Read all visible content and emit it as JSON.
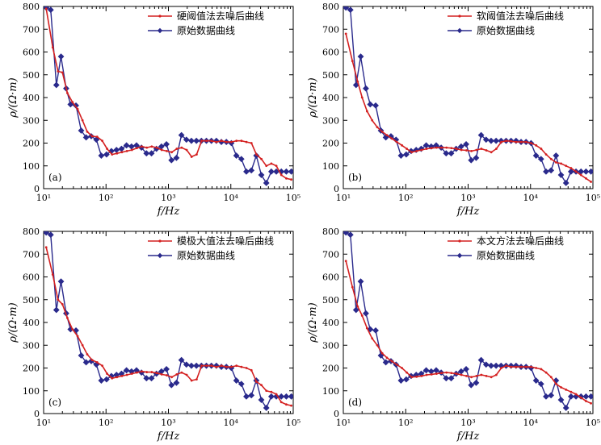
{
  "colors": {
    "denoised": "#d42020",
    "raw": "#2a2a8c"
  },
  "chart_data": [
    {
      "type": "line",
      "panel_label": "(a)",
      "xscale": "log",
      "xlim": [
        10,
        100000
      ],
      "ylim": [
        0,
        800
      ],
      "xticks": [
        10,
        100,
        1000,
        10000,
        100000
      ],
      "xtick_labels": [
        "10¹",
        "10²",
        "10³",
        "10⁴",
        "10⁵"
      ],
      "yticks": [
        0,
        100,
        200,
        300,
        400,
        500,
        600,
        700,
        800
      ],
      "xlabel": "f/Hz",
      "ylabel": "ρ/(Ω·m)",
      "legend_position": "top-right",
      "series": [
        {
          "name": "硬阈值法去噪后曲线",
          "color_key": "denoised",
          "marker": "dot",
          "x": [
            11,
            14,
            17,
            20,
            24,
            29,
            35,
            42,
            50,
            60,
            72,
            87,
            104,
            125,
            150,
            180,
            216,
            260,
            312,
            375,
            450,
            540,
            650,
            780,
            940,
            1130,
            1360,
            1630,
            1960,
            2350,
            2830,
            3400,
            4080,
            4900,
            5900,
            7100,
            8500,
            10200,
            12300,
            14800,
            17800,
            21400,
            25700,
            30900,
            37100,
            44600,
            53600,
            64400,
            77400,
            93000
          ],
          "y": [
            790,
            620,
            515,
            510,
            420,
            380,
            350,
            300,
            250,
            230,
            228,
            210,
            175,
            150,
            155,
            160,
            165,
            170,
            178,
            185,
            180,
            185,
            180,
            170,
            165,
            160,
            175,
            180,
            170,
            140,
            150,
            210,
            210,
            210,
            205,
            210,
            205,
            205,
            210,
            210,
            205,
            200,
            150,
            130,
            100,
            110,
            100,
            60,
            45,
            40
          ]
        },
        {
          "name": "原始数据曲线",
          "color_key": "raw",
          "marker": "diamond",
          "x": [
            11,
            13,
            16,
            19,
            23,
            27,
            33,
            40,
            48,
            58,
            70,
            84,
            102,
            122,
            147,
            177,
            213,
            256,
            308,
            370,
            445,
            535,
            643,
            773,
            930,
            1118,
            1344,
            1616,
            1943,
            2336,
            2809,
            3377,
            4060,
            4882,
            5869,
            7057,
            8485,
            10202,
            12266,
            14748,
            17733,
            21321,
            25635,
            30822,
            37058,
            44557,
            53573,
            64413,
            77446,
            93116
          ],
          "y": [
            795,
            785,
            455,
            580,
            440,
            370,
            365,
            255,
            225,
            230,
            215,
            145,
            150,
            165,
            170,
            175,
            190,
            185,
            190,
            180,
            155,
            155,
            175,
            185,
            195,
            125,
            135,
            235,
            215,
            210,
            210,
            210,
            210,
            210,
            210,
            205,
            205,
            200,
            145,
            130,
            75,
            80,
            145,
            60,
            25,
            75,
            75,
            75,
            75,
            75
          ]
        }
      ]
    },
    {
      "type": "line",
      "panel_label": "(b)",
      "xscale": "log",
      "xlim": [
        10,
        100000
      ],
      "ylim": [
        0,
        800
      ],
      "xticks": [
        10,
        100,
        1000,
        10000,
        100000
      ],
      "xtick_labels": [
        "10¹",
        "10²",
        "10³",
        "10⁴",
        "10⁵"
      ],
      "yticks": [
        0,
        100,
        200,
        300,
        400,
        500,
        600,
        700,
        800
      ],
      "xlabel": "f/Hz",
      "ylabel": "ρ/(Ω·m)",
      "legend_position": "top-right",
      "series": [
        {
          "name": "软阈值法去噪后曲线",
          "color_key": "denoised",
          "marker": "dot",
          "x": [
            11,
            14,
            17,
            20,
            24,
            29,
            35,
            42,
            50,
            60,
            72,
            87,
            104,
            125,
            150,
            180,
            216,
            260,
            312,
            375,
            450,
            540,
            650,
            780,
            940,
            1130,
            1360,
            1630,
            1960,
            2350,
            2830,
            3400,
            4080,
            4900,
            5900,
            7100,
            8500,
            10200,
            12300,
            14800,
            17800,
            21400,
            25700,
            30900,
            37100,
            44600,
            53600,
            64400,
            77400,
            93000
          ],
          "y": [
            680,
            560,
            470,
            400,
            340,
            300,
            270,
            250,
            235,
            220,
            205,
            190,
            175,
            160,
            165,
            170,
            175,
            178,
            180,
            180,
            180,
            178,
            175,
            170,
            168,
            165,
            170,
            175,
            168,
            160,
            175,
            205,
            210,
            208,
            205,
            205,
            205,
            200,
            190,
            175,
            150,
            130,
            115,
            110,
            100,
            90,
            75,
            60,
            45,
            30
          ]
        },
        {
          "name": "原始数据曲线",
          "color_key": "raw",
          "marker": "diamond",
          "x": [
            11,
            13,
            16,
            19,
            23,
            27,
            33,
            40,
            48,
            58,
            70,
            84,
            102,
            122,
            147,
            177,
            213,
            256,
            308,
            370,
            445,
            535,
            643,
            773,
            930,
            1118,
            1344,
            1616,
            1943,
            2336,
            2809,
            3377,
            4060,
            4882,
            5869,
            7057,
            8485,
            10202,
            12266,
            14748,
            17733,
            21321,
            25635,
            30822,
            37058,
            44557,
            53573,
            64413,
            77446,
            93116
          ],
          "y": [
            795,
            785,
            455,
            580,
            440,
            370,
            365,
            255,
            225,
            230,
            215,
            145,
            150,
            165,
            170,
            175,
            190,
            185,
            190,
            180,
            155,
            155,
            175,
            185,
            195,
            125,
            135,
            235,
            215,
            210,
            210,
            210,
            210,
            210,
            210,
            205,
            205,
            200,
            145,
            130,
            75,
            80,
            145,
            60,
            25,
            75,
            75,
            75,
            75,
            75
          ]
        }
      ]
    },
    {
      "type": "line",
      "panel_label": "(c)",
      "xscale": "log",
      "xlim": [
        10,
        100000
      ],
      "ylim": [
        0,
        800
      ],
      "xticks": [
        10,
        100,
        1000,
        10000,
        100000
      ],
      "xtick_labels": [
        "10¹",
        "10²",
        "10³",
        "10⁴",
        "10⁵"
      ],
      "yticks": [
        0,
        100,
        200,
        300,
        400,
        500,
        600,
        700,
        800
      ],
      "xlabel": "f/Hz",
      "ylabel": "ρ/(Ω·m)",
      "legend_position": "top-right",
      "series": [
        {
          "name": "模极大值法去噪后曲线",
          "color_key": "denoised",
          "marker": "dot",
          "x": [
            11,
            14,
            17,
            20,
            24,
            29,
            35,
            42,
            50,
            60,
            72,
            87,
            104,
            125,
            150,
            180,
            216,
            260,
            312,
            375,
            450,
            540,
            650,
            780,
            940,
            1130,
            1360,
            1630,
            1960,
            2350,
            2830,
            3400,
            4080,
            4900,
            5900,
            7100,
            8500,
            10200,
            12300,
            14800,
            17800,
            21400,
            25700,
            30900,
            37100,
            44600,
            53600,
            64400,
            77400,
            93000
          ],
          "y": [
            730,
            610,
            500,
            480,
            420,
            370,
            340,
            300,
            260,
            235,
            225,
            210,
            175,
            155,
            160,
            165,
            170,
            175,
            180,
            185,
            182,
            182,
            178,
            172,
            168,
            160,
            172,
            180,
            170,
            145,
            150,
            210,
            210,
            210,
            205,
            210,
            205,
            205,
            210,
            205,
            200,
            190,
            140,
            125,
            100,
            95,
            85,
            50,
            40,
            35
          ]
        },
        {
          "name": "原始数据曲线",
          "color_key": "raw",
          "marker": "diamond",
          "x": [
            11,
            13,
            16,
            19,
            23,
            27,
            33,
            40,
            48,
            58,
            70,
            84,
            102,
            122,
            147,
            177,
            213,
            256,
            308,
            370,
            445,
            535,
            643,
            773,
            930,
            1118,
            1344,
            1616,
            1943,
            2336,
            2809,
            3377,
            4060,
            4882,
            5869,
            7057,
            8485,
            10202,
            12266,
            14748,
            17733,
            21321,
            25635,
            30822,
            37058,
            44557,
            53573,
            64413,
            77446,
            93116
          ],
          "y": [
            795,
            785,
            455,
            580,
            440,
            370,
            365,
            255,
            225,
            230,
            215,
            145,
            150,
            165,
            170,
            175,
            190,
            185,
            190,
            180,
            155,
            155,
            175,
            185,
            195,
            125,
            135,
            235,
            215,
            210,
            210,
            210,
            210,
            210,
            210,
            205,
            205,
            200,
            145,
            130,
            75,
            80,
            145,
            60,
            25,
            75,
            75,
            75,
            75,
            75
          ]
        }
      ]
    },
    {
      "type": "line",
      "panel_label": "(d)",
      "xscale": "log",
      "xlim": [
        10,
        100000
      ],
      "ylim": [
        0,
        800
      ],
      "xticks": [
        10,
        100,
        1000,
        10000,
        100000
      ],
      "xtick_labels": [
        "10¹",
        "10²",
        "10³",
        "10⁴",
        "10⁵"
      ],
      "yticks": [
        0,
        100,
        200,
        300,
        400,
        500,
        600,
        700,
        800
      ],
      "xlabel": "f/Hz",
      "ylabel": "ρ/(Ω·m)",
      "legend_position": "top-right",
      "series": [
        {
          "name": "本文方法去噪后曲线",
          "color_key": "denoised",
          "marker": "dot",
          "x": [
            11,
            14,
            17,
            20,
            24,
            29,
            35,
            42,
            50,
            60,
            72,
            87,
            104,
            125,
            150,
            180,
            216,
            260,
            312,
            375,
            450,
            540,
            650,
            780,
            940,
            1130,
            1360,
            1630,
            1960,
            2350,
            2830,
            3400,
            4080,
            4900,
            5900,
            7100,
            8500,
            10200,
            12300,
            14800,
            17800,
            21400,
            25700,
            30900,
            37100,
            44600,
            53600,
            64400,
            77400,
            93000
          ],
          "y": [
            670,
            555,
            470,
            430,
            375,
            330,
            300,
            265,
            245,
            230,
            215,
            200,
            180,
            160,
            162,
            165,
            170,
            172,
            175,
            178,
            180,
            178,
            175,
            170,
            165,
            160,
            165,
            170,
            165,
            160,
            170,
            200,
            210,
            205,
            205,
            205,
            205,
            205,
            200,
            195,
            180,
            160,
            130,
            115,
            105,
            95,
            85,
            70,
            55,
            45
          ]
        },
        {
          "name": "原始数据曲线",
          "color_key": "raw",
          "marker": "diamond",
          "x": [
            11,
            13,
            16,
            19,
            23,
            27,
            33,
            40,
            48,
            58,
            70,
            84,
            102,
            122,
            147,
            177,
            213,
            256,
            308,
            370,
            445,
            535,
            643,
            773,
            930,
            1118,
            1344,
            1616,
            1943,
            2336,
            2809,
            3377,
            4060,
            4882,
            5869,
            7057,
            8485,
            10202,
            12266,
            14748,
            17733,
            21321,
            25635,
            30822,
            37058,
            44557,
            53573,
            64413,
            77446,
            93116
          ],
          "y": [
            795,
            785,
            455,
            580,
            440,
            370,
            365,
            255,
            225,
            230,
            215,
            145,
            150,
            165,
            170,
            175,
            190,
            185,
            190,
            180,
            155,
            155,
            175,
            185,
            195,
            125,
            135,
            235,
            215,
            210,
            210,
            210,
            210,
            210,
            210,
            205,
            205,
            200,
            145,
            130,
            75,
            80,
            145,
            60,
            25,
            75,
            75,
            75,
            75,
            75
          ]
        }
      ]
    }
  ]
}
